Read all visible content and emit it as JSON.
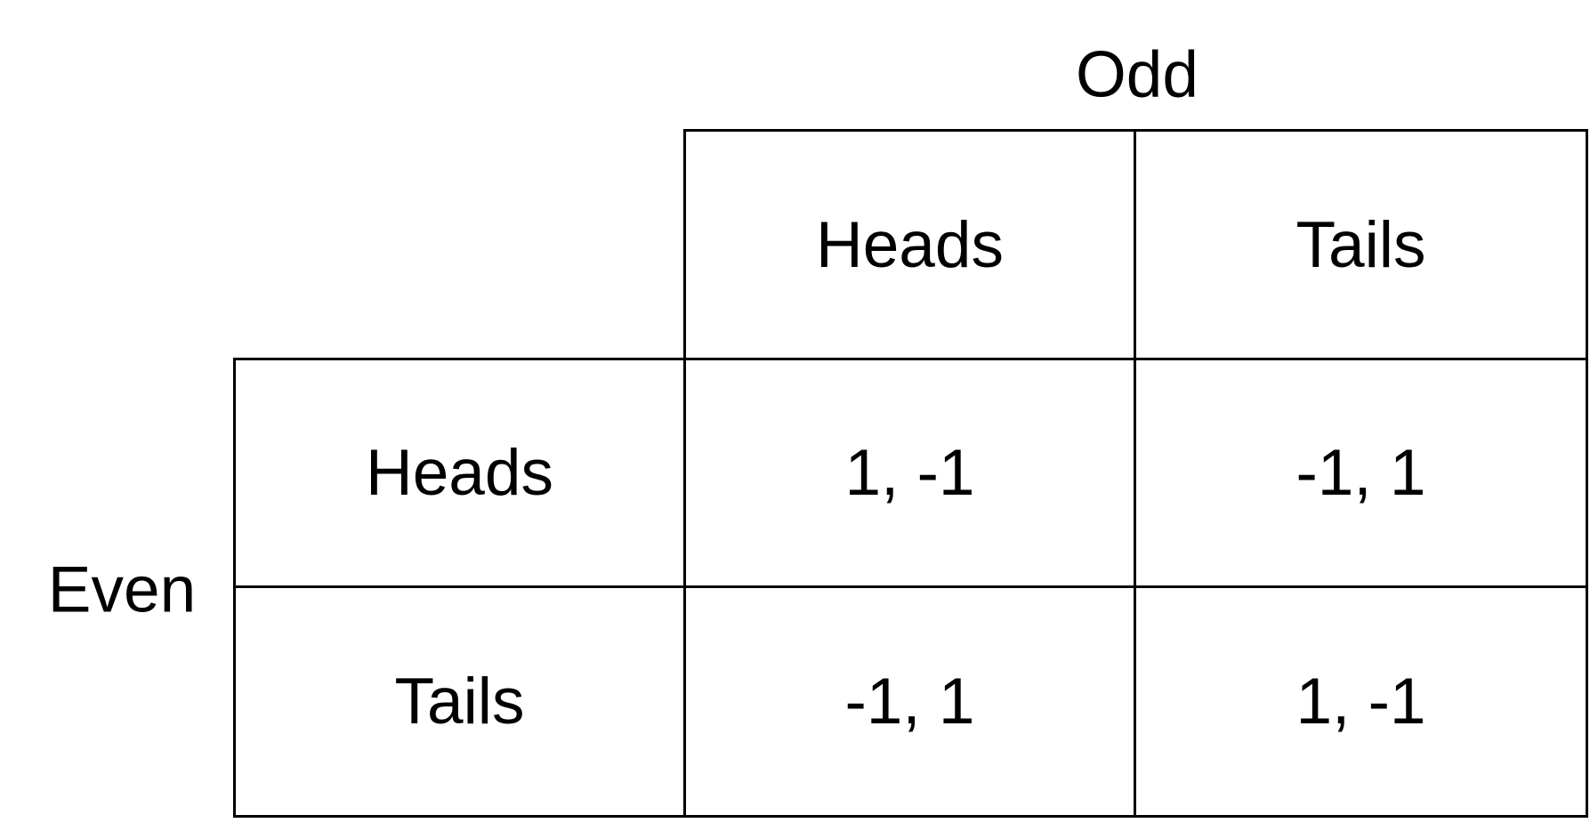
{
  "players": {
    "column": "Odd",
    "row": "Even"
  },
  "column_strategies": [
    "Heads",
    "Tails"
  ],
  "row_strategies": [
    "Heads",
    "Tails"
  ],
  "payoffs": [
    [
      "1, -1",
      "-1, 1"
    ],
    [
      "-1, 1",
      "1, -1"
    ]
  ]
}
